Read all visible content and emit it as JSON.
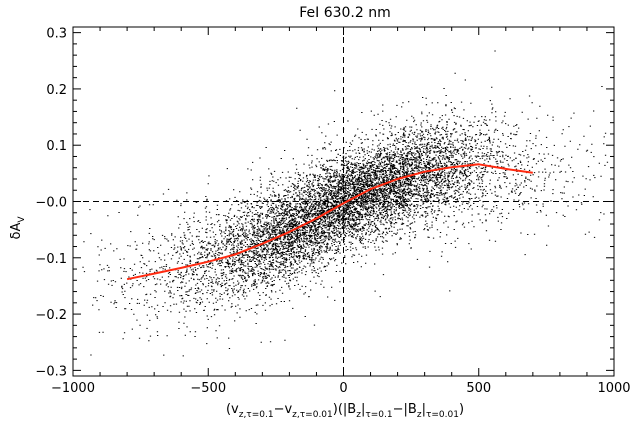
{
  "chart_data": {
    "type": "scatter",
    "title": "FeI 630.2 nm",
    "ylabel": "δA",
    "ylabel_sub": "V",
    "xlabel_parts": [
      {
        "t": "(v",
        "s": "n"
      },
      {
        "t": "z,τ=0.1",
        "s": "sub"
      },
      {
        "t": "−v",
        "s": "n"
      },
      {
        "t": "z,τ=0.01",
        "s": "sub"
      },
      {
        "t": ")(|B",
        "s": "n"
      },
      {
        "t": "z",
        "s": "sub"
      },
      {
        "t": "|",
        "s": "n"
      },
      {
        "t": "τ=0.1",
        "s": "sub"
      },
      {
        "t": "−|B",
        "s": "n"
      },
      {
        "t": "z",
        "s": "sub"
      },
      {
        "t": "|",
        "s": "n"
      },
      {
        "t": "τ=0.01",
        "s": "sub"
      },
      {
        "t": ")",
        "s": "n"
      }
    ],
    "xlim": [
      -1000,
      1000
    ],
    "ylim": [
      -0.31,
      0.31
    ],
    "xticks": [
      -1000,
      -500,
      0,
      500,
      1000
    ],
    "xtick_labels": [
      "−1000",
      "−500",
      "0",
      "500",
      "1000"
    ],
    "yticks": [
      -0.3,
      -0.2,
      -0.1,
      0.0,
      0.1,
      0.2,
      0.3
    ],
    "ytick_labels": [
      "−0.3",
      "−0.2",
      "−0.1",
      "−0.0",
      "0.1",
      "0.2",
      "0.3"
    ],
    "reference_lines": {
      "x": 0,
      "y": 0
    },
    "grid": false,
    "legend": "none",
    "colors": {
      "points": "#000000",
      "fit": "#ff2a10",
      "reference": "#000000"
    },
    "scatter": {
      "point_count": 9000,
      "trend_x": [
        -1000,
        -800,
        -600,
        -400,
        -200,
        0,
        200,
        400,
        500,
        600,
        800,
        1000
      ],
      "trend_y": [
        -0.16,
        -0.14,
        -0.12,
        -0.095,
        -0.055,
        0.0,
        0.038,
        0.058,
        0.066,
        0.062,
        0.055,
        0.05
      ],
      "spread_x": 280,
      "spread_y_core": 0.04,
      "spread_y_edge": 0.055
    },
    "series": [
      {
        "x": [
          -800,
          -700,
          -600,
          -500,
          -400,
          -300,
          -200,
          -100,
          0,
          100,
          200,
          300,
          400,
          500,
          600,
          700
        ],
        "y": [
          -0.138,
          -0.128,
          -0.118,
          -0.107,
          -0.094,
          -0.075,
          -0.054,
          -0.03,
          -0.003,
          0.022,
          0.04,
          0.053,
          0.061,
          0.066,
          0.058,
          0.051
        ]
      }
    ]
  }
}
